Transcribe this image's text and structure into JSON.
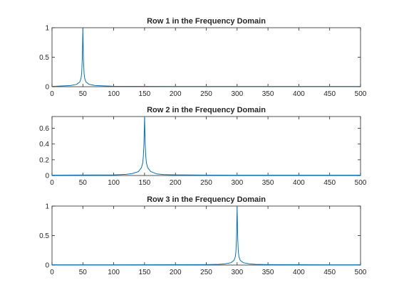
{
  "colors": {
    "line": "#0072BD",
    "axes": "#262626",
    "background": "#ffffff"
  },
  "chart_data": [
    {
      "type": "line",
      "title": "Row 1 in the Frequency Domain",
      "xlabel": "",
      "ylabel": "",
      "xlim": [
        0,
        500
      ],
      "ylim": [
        0,
        1
      ],
      "grid": false,
      "xticks": [
        0,
        50,
        100,
        150,
        200,
        250,
        300,
        350,
        400,
        450,
        500
      ],
      "yticks": [
        0,
        0.5,
        1
      ],
      "x_tick_labels": [
        "0",
        "50",
        "100",
        "150",
        "200",
        "250",
        "300",
        "350",
        "400",
        "450",
        "500"
      ],
      "y_tick_labels": [
        "0",
        "0.5",
        "1"
      ],
      "series": [
        {
          "peak_x": 50,
          "peak_y": 0.98,
          "baseline": 0.005,
          "x": [
            0,
            30,
            40,
            45,
            47,
            48,
            49,
            50,
            51,
            52,
            53,
            55,
            60,
            70,
            100,
            150,
            200,
            250,
            300,
            350,
            400,
            450,
            500
          ],
          "y": [
            0.005,
            0.02,
            0.04,
            0.08,
            0.14,
            0.22,
            0.45,
            0.98,
            0.45,
            0.22,
            0.14,
            0.08,
            0.04,
            0.02,
            0.008,
            0.006,
            0.005,
            0.005,
            0.005,
            0.005,
            0.005,
            0.005,
            0.005
          ]
        }
      ]
    },
    {
      "type": "line",
      "title": "Row 2 in the Frequency Domain",
      "xlabel": "",
      "ylabel": "",
      "xlim": [
        0,
        500
      ],
      "ylim": [
        0,
        0.75
      ],
      "grid": false,
      "xticks": [
        0,
        50,
        100,
        150,
        200,
        250,
        300,
        350,
        400,
        450,
        500
      ],
      "yticks": [
        0,
        0.2,
        0.4,
        0.6
      ],
      "x_tick_labels": [
        "0",
        "50",
        "100",
        "150",
        "200",
        "250",
        "300",
        "350",
        "400",
        "450",
        "500"
      ],
      "y_tick_labels": [
        "0",
        "0.2",
        "0.4",
        "0.6"
      ],
      "series": [
        {
          "peak_x": 150,
          "peak_y": 0.75,
          "baseline": 0.005,
          "x": [
            0,
            100,
            120,
            130,
            140,
            145,
            147,
            148,
            149,
            150,
            151,
            152,
            153,
            155,
            160,
            170,
            180,
            200,
            250,
            300,
            350,
            400,
            450,
            500
          ],
          "y": [
            0.005,
            0.008,
            0.015,
            0.025,
            0.05,
            0.1,
            0.16,
            0.24,
            0.4,
            0.75,
            0.4,
            0.24,
            0.16,
            0.1,
            0.05,
            0.02,
            0.012,
            0.008,
            0.006,
            0.005,
            0.005,
            0.005,
            0.005,
            0.005
          ]
        }
      ]
    },
    {
      "type": "line",
      "title": "Row 3 in the Frequency Domain",
      "xlabel": "",
      "ylabel": "",
      "xlim": [
        0,
        500
      ],
      "ylim": [
        0,
        1
      ],
      "grid": false,
      "xticks": [
        0,
        50,
        100,
        150,
        200,
        250,
        300,
        350,
        400,
        450,
        500
      ],
      "yticks": [
        0,
        0.5,
        1
      ],
      "x_tick_labels": [
        "0",
        "50",
        "100",
        "150",
        "200",
        "250",
        "300",
        "350",
        "400",
        "450",
        "500"
      ],
      "y_tick_labels": [
        "0",
        "0.5",
        "1"
      ],
      "series": [
        {
          "peak_x": 300,
          "peak_y": 0.98,
          "baseline": 0.005,
          "x": [
            0,
            100,
            200,
            250,
            270,
            280,
            290,
            295,
            297,
            298,
            299,
            300,
            301,
            302,
            303,
            305,
            310,
            320,
            330,
            350,
            400,
            450,
            500
          ],
          "y": [
            0.005,
            0.005,
            0.006,
            0.008,
            0.012,
            0.02,
            0.04,
            0.08,
            0.14,
            0.22,
            0.45,
            0.98,
            0.45,
            0.22,
            0.14,
            0.08,
            0.04,
            0.02,
            0.012,
            0.008,
            0.006,
            0.005,
            0.005
          ]
        }
      ]
    }
  ]
}
